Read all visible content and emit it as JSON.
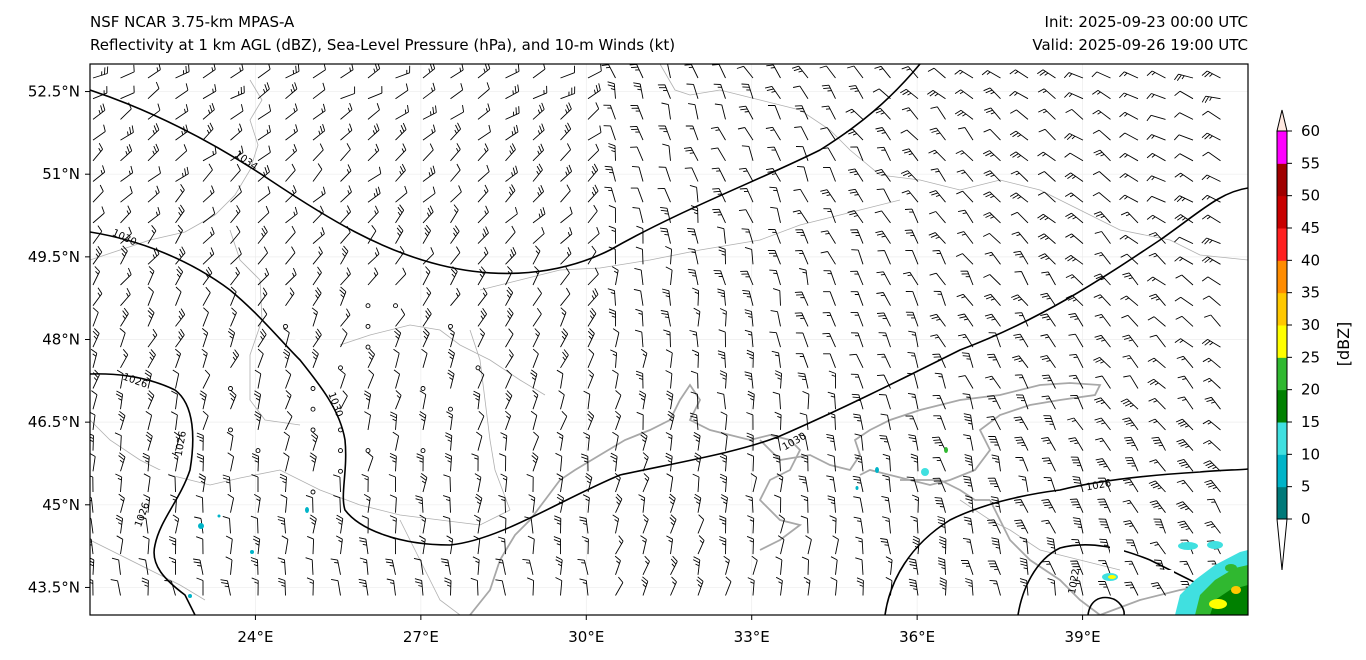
{
  "header": {
    "model": "NSF NCAR 3.75-km MPAS-A",
    "fields": "Reflectivity at 1 km AGL (dBZ), Sea-Level Pressure (hPa), and 10-m Winds (kt)",
    "init": "Init: 2025-09-23 00:00 UTC",
    "valid": "Valid: 2025-09-26 19:00 UTC"
  },
  "map": {
    "lon_ticks": [
      "24°E",
      "27°E",
      "30°E",
      "33°E",
      "36°E",
      "39°E"
    ],
    "lat_ticks": [
      "52.5°N",
      "51°N",
      "49.5°N",
      "48°N",
      "46.5°N",
      "45°N",
      "43.5°N"
    ],
    "lon_values": [
      24,
      27,
      30,
      33,
      36,
      39
    ],
    "lat_values": [
      52.5,
      51,
      49.5,
      48,
      46.5,
      45,
      43.5
    ],
    "lon_range": [
      21,
      42
    ],
    "lat_range": [
      43,
      53
    ],
    "contour_labels": [
      {
        "text": "1034",
        "lon": 23.8,
        "lat": 51.2,
        "rot": 35
      },
      {
        "text": "1030",
        "lon": 21.6,
        "lat": 49.8,
        "rot": 25
      },
      {
        "text": "1030",
        "lon": 25.4,
        "lat": 46.8,
        "rot": 70
      },
      {
        "text": "1026",
        "lon": 21.8,
        "lat": 47.2,
        "rot": 20
      },
      {
        "text": "1026",
        "lon": 22.7,
        "lat": 46.1,
        "rot": -80
      },
      {
        "text": "1026",
        "lon": 22.0,
        "lat": 44.8,
        "rot": -70
      },
      {
        "text": "1030",
        "lon": 33.8,
        "lat": 46.1,
        "rot": -30
      },
      {
        "text": "1026",
        "lon": 39.3,
        "lat": 45.3,
        "rot": -10
      },
      {
        "text": "1022",
        "lon": 38.9,
        "lat": 43.6,
        "rot": -80
      }
    ]
  },
  "colorbar": {
    "label": "[dBZ]",
    "ticks": [
      "0",
      "5",
      "10",
      "15",
      "20",
      "25",
      "30",
      "35",
      "40",
      "45",
      "50",
      "55",
      "60"
    ],
    "colors": [
      "#007a7a",
      "#00b4c8",
      "#40e0e0",
      "#008000",
      "#30b830",
      "#ffff00",
      "#ffc800",
      "#ff8c00",
      "#ff2020",
      "#c80000",
      "#a00000",
      "#ff00ff",
      "#ffe8e0"
    ]
  }
}
